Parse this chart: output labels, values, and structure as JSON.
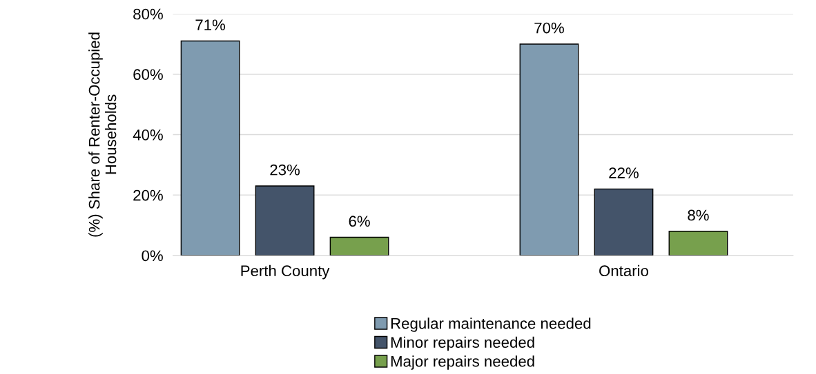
{
  "chart_data": {
    "type": "bar",
    "ylabel": "(%) Share of Renter-Occupied Households",
    "categories": [
      "Perth County",
      "Ontario"
    ],
    "series": [
      {
        "name": "Regular maintenance needed",
        "color": "#7f9bb0",
        "values": [
          71,
          70
        ],
        "value_labels": [
          "71%",
          "70%"
        ]
      },
      {
        "name": "Minor repairs needed",
        "color": "#44546a",
        "values": [
          23,
          22
        ],
        "value_labels": [
          "23%",
          "22%"
        ]
      },
      {
        "name": "Major repairs needed",
        "color": "#77a04d",
        "values": [
          6,
          8
        ],
        "value_labels": [
          "6%",
          "8%"
        ]
      }
    ],
    "ylim": [
      0,
      80
    ],
    "yticks": [
      {
        "value": 0,
        "label": "0%"
      },
      {
        "value": 20,
        "label": "20%"
      },
      {
        "value": 40,
        "label": "40%"
      },
      {
        "value": 60,
        "label": "60%"
      },
      {
        "value": 80,
        "label": "80%"
      }
    ],
    "grid": "y",
    "legend": "bottom"
  }
}
